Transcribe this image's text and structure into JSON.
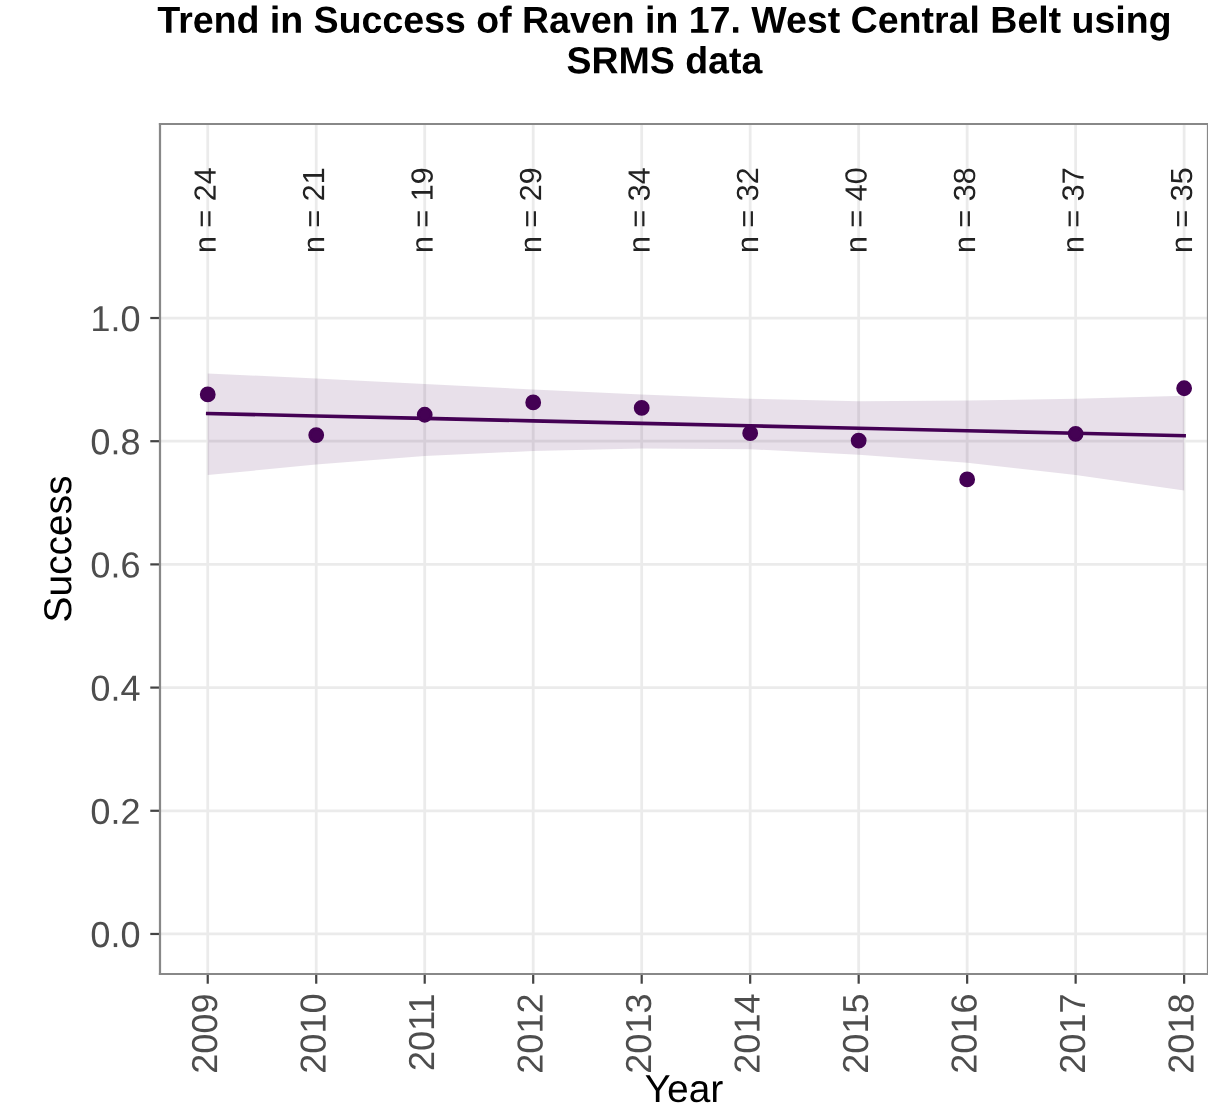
{
  "chart_data": {
    "type": "scatter",
    "title": "Trend in Success of Raven in 17. West Central Belt using\nSRMS data",
    "xlabel": "Year",
    "ylabel": "Success",
    "x": [
      2009,
      2010,
      2011,
      2012,
      2013,
      2014,
      2015,
      2016,
      2017,
      2018
    ],
    "series": [
      {
        "color": "#440154",
        "marker": "circle",
        "values": [
          0.876,
          0.81,
          0.843,
          0.863,
          0.854,
          0.813,
          0.801,
          0.738,
          0.812,
          0.886
        ]
      },
      {
        "type": "line",
        "color": "#440154",
        "x": [
          2009,
          2010,
          2011,
          2012,
          2013,
          2014,
          2015,
          2016,
          2017,
          2018
        ],
        "values": [
          0.845,
          0.841,
          0.837,
          0.833,
          0.829,
          0.825,
          0.821,
          0.817,
          0.813,
          0.809
        ],
        "lower": [
          0.745,
          0.762,
          0.776,
          0.784,
          0.788,
          0.787,
          0.778,
          0.765,
          0.745,
          0.72
        ],
        "upper": [
          0.91,
          0.902,
          0.893,
          0.884,
          0.876,
          0.869,
          0.865,
          0.866,
          0.869,
          0.874
        ]
      }
    ],
    "annotations": [
      "n = 24",
      "n = 21",
      "n = 19",
      "n = 29",
      "n = 34",
      "n = 32",
      "n = 40",
      "n = 38",
      "n = 37",
      "n = 35"
    ],
    "xlim": [
      2008.56,
      2018.22
    ],
    "xticks": [
      2009,
      2010,
      2011,
      2012,
      2013,
      2014,
      2015,
      2016,
      2017,
      2018
    ],
    "ylim": [
      -0.065,
      1.315
    ],
    "yticks": [
      {
        "value": 0.0,
        "label": "0.0"
      },
      {
        "value": 0.2,
        "label": "0.2"
      },
      {
        "value": 0.4,
        "label": "0.4"
      },
      {
        "value": 0.6,
        "label": "0.6"
      },
      {
        "value": 0.8,
        "label": "0.8"
      },
      {
        "value": 1.0,
        "label": "1.0"
      }
    ],
    "grid": true,
    "line_style": "solid"
  }
}
